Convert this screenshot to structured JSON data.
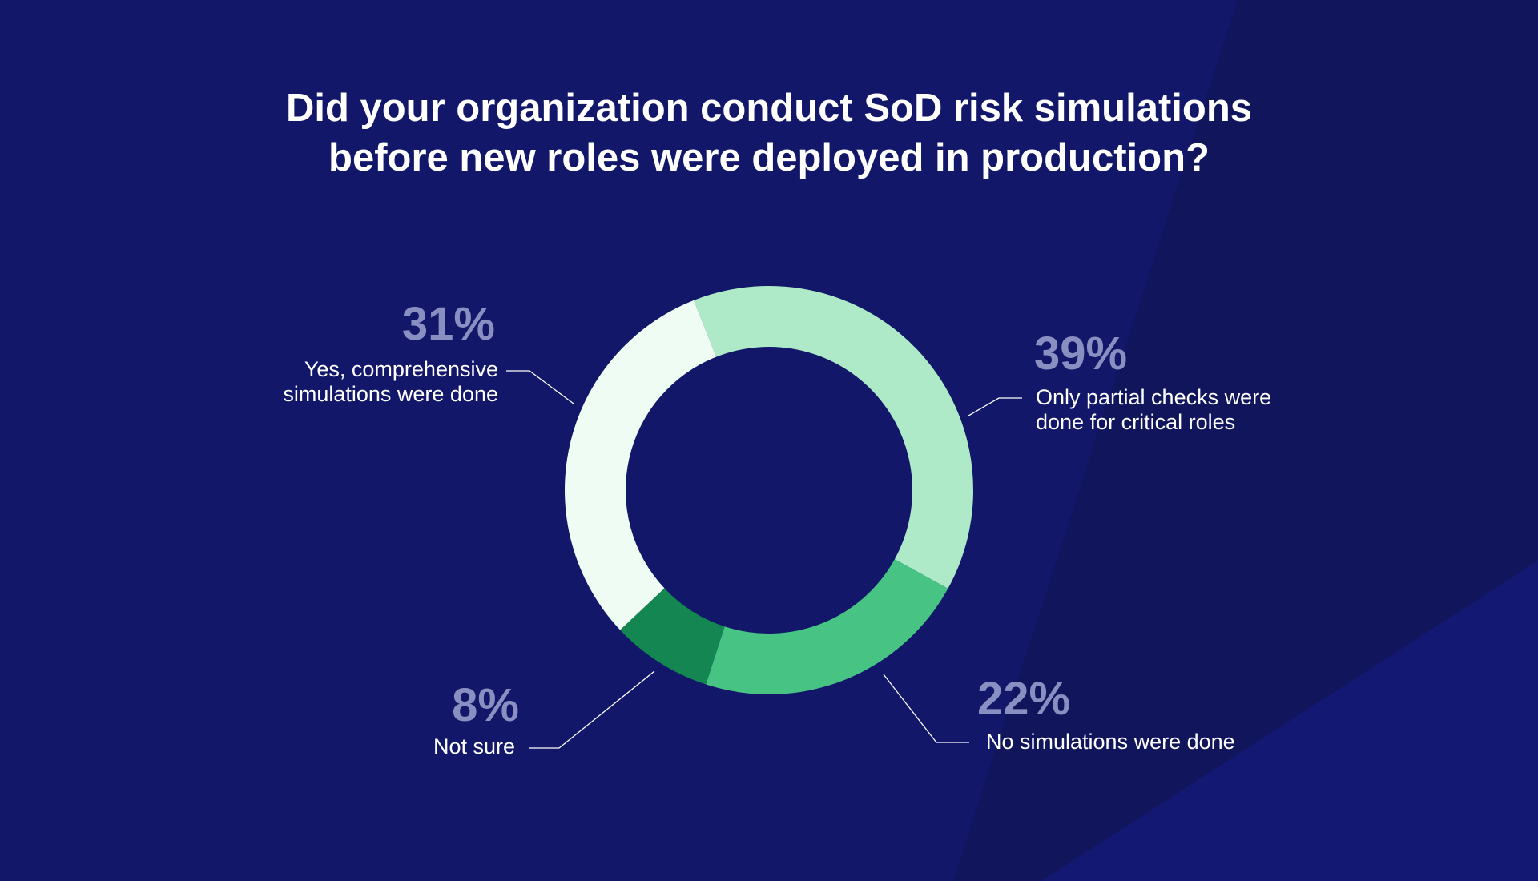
{
  "chart_data": {
    "type": "pie",
    "variant": "donut",
    "title": [
      "Did your organization conduct SoD risk simulations",
      "before new roles were deployed in production?"
    ],
    "start_angle_deg": -21.6,
    "slices": [
      {
        "label": [
          "Only partial checks were",
          "done for critical roles"
        ],
        "value": 39,
        "value_label": "39%",
        "color": "#aeeac8"
      },
      {
        "label": [
          "No simulations were done"
        ],
        "value": 22,
        "value_label": "22%",
        "color": "#47c484"
      },
      {
        "label": [
          "Not sure"
        ],
        "value": 8,
        "value_label": "8%",
        "color": "#138651"
      },
      {
        "label": [
          "Yes, comprehensive",
          "simulations were done"
        ],
        "value": 31,
        "value_label": "31%",
        "color": "#effcf3"
      }
    ]
  },
  "colors": {
    "background": "#10145a",
    "band": "#141a76",
    "percent": "#8a8fc2",
    "text": "#ffffff"
  }
}
